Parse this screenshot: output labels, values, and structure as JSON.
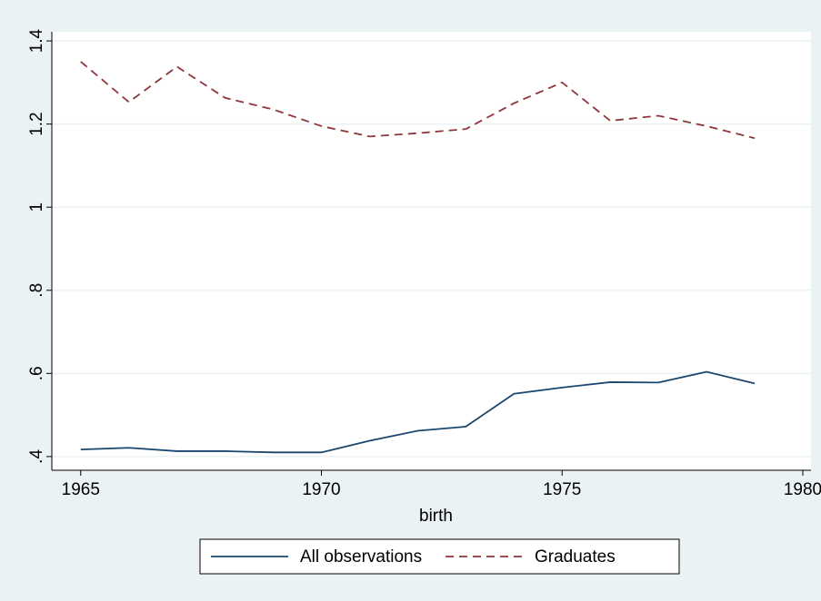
{
  "chart_data": {
    "type": "line",
    "x": [
      1965,
      1966,
      1967,
      1968,
      1969,
      1970,
      1971,
      1972,
      1973,
      1974,
      1975,
      1976,
      1977,
      1978,
      1979
    ],
    "series": [
      {
        "name": "All observations",
        "color": "#1a476f",
        "dash": "solid",
        "values": [
          0.417,
          0.421,
          0.413,
          0.413,
          0.41,
          0.41,
          0.438,
          0.462,
          0.472,
          0.551,
          0.566,
          0.579,
          0.578,
          0.604,
          0.576
        ]
      },
      {
        "name": "Graduates",
        "color": "#90353b",
        "dash": "dashed",
        "values": [
          1.35,
          1.253,
          1.338,
          1.263,
          1.235,
          1.195,
          1.17,
          1.178,
          1.188,
          1.25,
          1.3,
          1.208,
          1.22,
          1.195,
          1.166
        ]
      }
    ],
    "xlabel": "birth",
    "xlim": [
      1964.4,
      1980.17
    ],
    "xticks": [
      1965,
      1970,
      1975,
      1980
    ],
    "ylim": [
      0.367,
      1.422
    ],
    "yticks": [
      {
        "value": 0.4,
        "label": ".4"
      },
      {
        "value": 0.6,
        "label": ".6"
      },
      {
        "value": 0.8,
        "label": ".8"
      },
      1,
      1.2,
      1.4
    ],
    "grid": true,
    "legend": "bottom"
  }
}
